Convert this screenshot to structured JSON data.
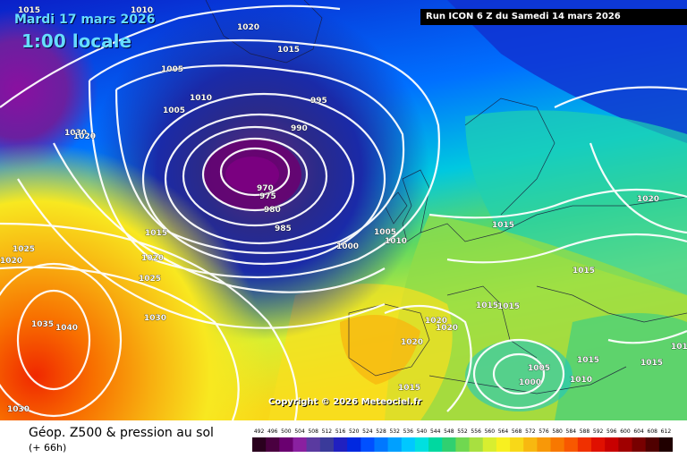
{
  "header": {
    "date": "Mardi 17 mars 2026",
    "time": "1:00 locale",
    "run": "Run ICON 6 Z du Samedi 14 mars 2026"
  },
  "footer": {
    "title": "Géop. Z500 & pression au sol",
    "lead": "(+ 66h)",
    "copyright": "Copyright © 2026 Meteociel.fr"
  },
  "scale": {
    "labels": [
      "492",
      "496",
      "500",
      "504",
      "508",
      "512",
      "516",
      "520",
      "524",
      "528",
      "532",
      "536",
      "540",
      "544",
      "548",
      "552",
      "556",
      "560",
      "564",
      "568",
      "572",
      "576",
      "580",
      "584",
      "588",
      "592",
      "596",
      "600",
      "604",
      "608",
      "612"
    ],
    "colors": [
      "#2a001e",
      "#4a0040",
      "#6a0070",
      "#8a20a0",
      "#5a3aa0",
      "#3a3a9a",
      "#2020c0",
      "#0028e0",
      "#0050ff",
      "#0078ff",
      "#00a0ff",
      "#00c8ff",
      "#00e0e0",
      "#00d8a0",
      "#30d070",
      "#70d850",
      "#a8e040",
      "#d8ee30",
      "#f8f020",
      "#f8d818",
      "#f8b810",
      "#f89808",
      "#f87800",
      "#f85800",
      "#f03000",
      "#e01000",
      "#c80000",
      "#a00000",
      "#780000",
      "#500000",
      "#200000"
    ]
  },
  "isobars": [
    "1015",
    "1010",
    "1020",
    "1015",
    "1005",
    "1005",
    "1010",
    "995",
    "990",
    "1030",
    "1020",
    "970",
    "975",
    "980",
    "985",
    "1015",
    "1020",
    "1025",
    "1025",
    "1020",
    "1035",
    "1040",
    "1030",
    "1030",
    "1005",
    "1010",
    "1000",
    "1015",
    "1015",
    "1020",
    "1020",
    "1020",
    "1020",
    "1015",
    "1015",
    "1015",
    "1005",
    "1000",
    "1010",
    "1015",
    "1015",
    "1015"
  ]
}
